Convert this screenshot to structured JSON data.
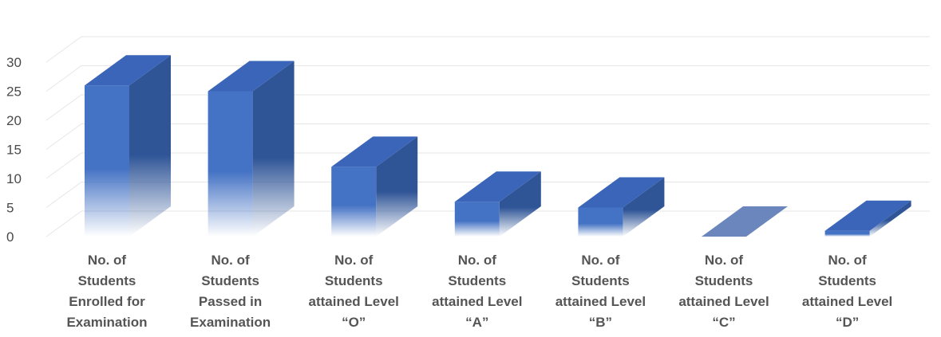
{
  "chart_data": {
    "type": "bar",
    "title": "",
    "xlabel": "",
    "ylabel": "",
    "ylim": [
      0,
      30
    ],
    "yticks": [
      0,
      5,
      10,
      15,
      20,
      25,
      30
    ],
    "grid": true,
    "style": "3d-column-gradient",
    "categories": [
      [
        "No. of",
        "Students",
        "Enrolled for",
        "Examination"
      ],
      [
        "No. of",
        "Students",
        "Passed in",
        "Examination"
      ],
      [
        "No. of",
        "Students",
        "attained Level",
        "“O”"
      ],
      [
        "No. of",
        "Students",
        "attained Level",
        "“A”"
      ],
      [
        "No. of",
        "Students",
        "attained Level",
        "“B”"
      ],
      [
        "No. of",
        "Students",
        "attained Level",
        "“C”"
      ],
      [
        "No. of",
        "Students",
        "attained Level",
        "“D”"
      ]
    ],
    "values": [
      26,
      25,
      12,
      6,
      5,
      0,
      1
    ],
    "colors": {
      "front": "#4472c4",
      "side": "#2f5597",
      "top": "#3b65b8",
      "zero_top": "#6b86bd",
      "grid": "#e6e6e6",
      "axis_text": "#4a4a4a",
      "label_text": "#555555"
    }
  }
}
